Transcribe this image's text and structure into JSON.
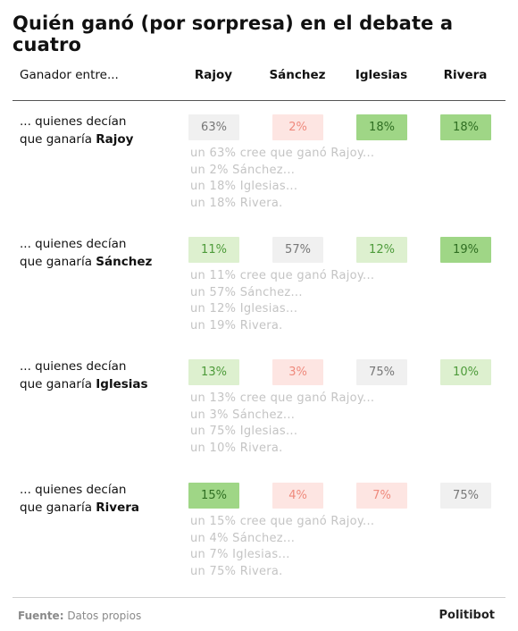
{
  "title": "Quién ganó (por sorpresa) en el debate a cuatro",
  "header": {
    "row_label": "Ganador entre...",
    "columns": [
      "Rajoy",
      "Sánchez",
      "Iglesias",
      "Rivera"
    ]
  },
  "chart_data": {
    "type": "table",
    "title": "Quién ganó (por sorpresa) en el debate a cuatro",
    "columns": [
      "Rajoy",
      "Sánchez",
      "Iglesias",
      "Rivera"
    ],
    "rows": [
      {
        "label_prefix": "... quienes decían",
        "label_mid": "que ganaría ",
        "label_bold": "Rajoy",
        "values": [
          63,
          2,
          18,
          18
        ],
        "display": [
          "63%",
          "2%",
          "18%",
          "18%"
        ],
        "shading": [
          "neutral",
          "neg-light",
          "pos-strong",
          "pos-strong"
        ],
        "details": [
          "un 63% cree que ganó Rajoy...",
          "un 2% Sánchez...",
          "un 18% Iglesias...",
          "un 18% Rivera."
        ]
      },
      {
        "label_prefix": "... quienes decían",
        "label_mid": "que ganaría ",
        "label_bold": "Sánchez",
        "values": [
          11,
          57,
          12,
          19
        ],
        "display": [
          "11%",
          "57%",
          "12%",
          "19%"
        ],
        "shading": [
          "pos-light",
          "neutral",
          "pos-light",
          "pos-strong"
        ],
        "details": [
          "un 11% cree que ganó Rajoy...",
          "un 57% Sánchez...",
          "un 12% Iglesias...",
          "un 19% Rivera."
        ]
      },
      {
        "label_prefix": "... quienes decían",
        "label_mid": "que ganaría ",
        "label_bold": "Iglesias",
        "values": [
          13,
          3,
          75,
          10
        ],
        "display": [
          "13%",
          "3%",
          "75%",
          "10%"
        ],
        "shading": [
          "pos-light",
          "neg-light",
          "neutral",
          "pos-light"
        ],
        "details": [
          "un 13% cree que ganó Rajoy...",
          "un 3% Sánchez...",
          "un 75% Iglesias...",
          "un 10% Rivera."
        ]
      },
      {
        "label_prefix": "... quienes decían",
        "label_mid": "que ganaría ",
        "label_bold": "Rivera",
        "values": [
          15,
          4,
          7,
          75
        ],
        "display": [
          "15%",
          "4%",
          "7%",
          "75%"
        ],
        "shading": [
          "pos-strong",
          "neg-light",
          "neg-light",
          "neutral"
        ],
        "details": [
          "un 15% cree que ganó Rajoy...",
          "un 4% Sánchez...",
          "un 7% Iglesias...",
          "un 75% Rivera."
        ]
      }
    ]
  },
  "colors": {
    "neutral_bg": "#f0f0f0",
    "neutral_fg": "#777777",
    "neg_light_bg": "#fde5e2",
    "neg_light_fg": "#ef8a7d",
    "pos_light_bg": "#ddf0cf",
    "pos_light_fg": "#4d9b3a",
    "pos_strong_bg": "#9fd686",
    "pos_strong_fg": "#2f6e22"
  },
  "footer": {
    "source_label": "Fuente:",
    "source_text": " Datos propios",
    "brand": "Politibot"
  }
}
